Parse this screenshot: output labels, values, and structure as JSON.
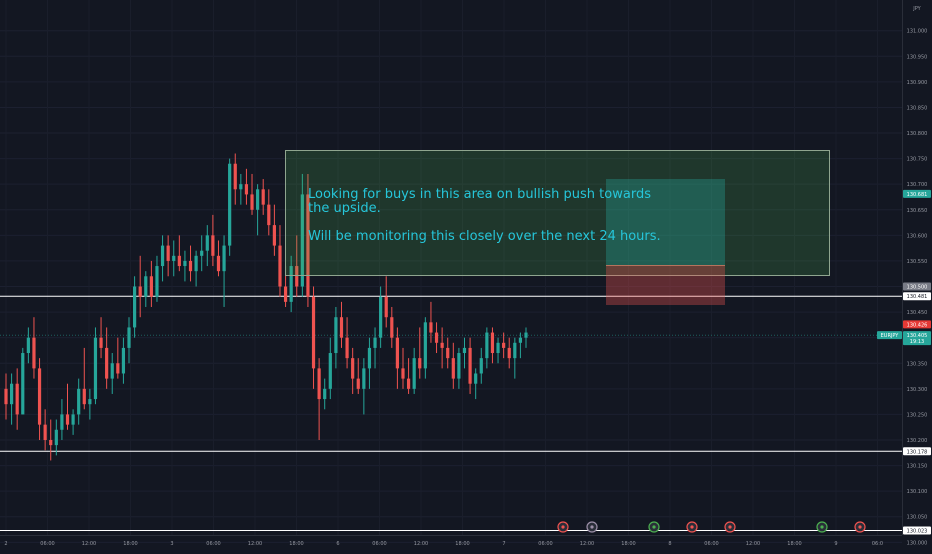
{
  "currency": "JPY",
  "annotation": {
    "line1": "Looking for buys in this area on bullish push towards the upside.",
    "line2": "Will be monitoring this closely over the next 24 hours."
  },
  "price_labels": {
    "current_price": "130.405",
    "current_price_color": "#26a69a",
    "symbol": "EURJPY",
    "countdown": "19:13",
    "stop_price": "130.426",
    "stop_color": "#e53935",
    "target_price": "130.681",
    "target_color": "#26a69a",
    "entry_price": "130.500",
    "entry_color": "#787b86",
    "level_1": "130.481",
    "level_2": "130.178",
    "level_3": "130.023"
  },
  "colors": {
    "up": "#26a69a",
    "down": "#ef5350",
    "background": "#131722",
    "annotation": "#26c6da"
  },
  "chart_data": {
    "type": "candlestick",
    "symbol": "EURJPY",
    "ylim": [
      129.985,
      131.06
    ],
    "y_ticks": [
      "131.000",
      "130.950",
      "130.900",
      "130.850",
      "130.800",
      "130.750",
      "130.700",
      "130.650",
      "130.600",
      "130.550",
      "130.500",
      "130.450",
      "130.400",
      "130.350",
      "130.300",
      "130.250",
      "130.200",
      "130.150",
      "130.100",
      "130.050",
      "130.000"
    ],
    "x_ticks": [
      "2",
      "06:00",
      "12:00",
      "18:00",
      "3",
      "06:00",
      "12:00",
      "18:00",
      "6",
      "06:00",
      "12:00",
      "18:00",
      "7",
      "06:00",
      "12:00",
      "18:00",
      "8",
      "06:00",
      "12:00",
      "18:00",
      "9",
      "06:0"
    ],
    "horizontal_levels": [
      130.481,
      130.178,
      130.023
    ],
    "annotation_zone": {
      "top": 130.74,
      "bottom": 130.48
    },
    "long_position": {
      "target": 130.681,
      "entry": 130.5,
      "stop": 130.426
    },
    "current_price": 130.405,
    "candles": [
      [
        130.3,
        130.33,
        130.24,
        130.27
      ],
      [
        130.27,
        130.33,
        130.23,
        130.31
      ],
      [
        130.31,
        130.34,
        130.22,
        130.25
      ],
      [
        130.25,
        130.38,
        130.25,
        130.37
      ],
      [
        130.37,
        130.42,
        130.35,
        130.4
      ],
      [
        130.4,
        130.44,
        130.32,
        130.34
      ],
      [
        130.34,
        130.36,
        130.2,
        130.23
      ],
      [
        130.23,
        130.26,
        130.18,
        130.2
      ],
      [
        130.2,
        130.24,
        130.16,
        130.19
      ],
      [
        130.19,
        130.24,
        130.17,
        130.22
      ],
      [
        130.22,
        130.28,
        130.2,
        130.25
      ],
      [
        130.25,
        130.31,
        130.22,
        130.23
      ],
      [
        130.23,
        130.26,
        130.21,
        130.25
      ],
      [
        130.25,
        130.32,
        130.23,
        130.3
      ],
      [
        130.3,
        130.38,
        130.26,
        130.27
      ],
      [
        130.27,
        130.3,
        130.24,
        130.28
      ],
      [
        130.28,
        130.42,
        130.27,
        130.4
      ],
      [
        130.4,
        130.44,
        130.36,
        130.38
      ],
      [
        130.38,
        130.42,
        130.3,
        130.32
      ],
      [
        130.32,
        130.37,
        130.29,
        130.35
      ],
      [
        130.35,
        130.4,
        130.32,
        130.33
      ],
      [
        130.33,
        130.4,
        130.31,
        130.38
      ],
      [
        130.38,
        130.44,
        130.35,
        130.42
      ],
      [
        130.42,
        130.52,
        130.4,
        130.5
      ],
      [
        130.5,
        130.56,
        130.44,
        130.48
      ],
      [
        130.48,
        130.53,
        130.46,
        130.52
      ],
      [
        130.52,
        130.55,
        130.46,
        130.48
      ],
      [
        130.48,
        130.56,
        130.47,
        130.54
      ],
      [
        130.54,
        130.6,
        130.51,
        130.58
      ],
      [
        130.58,
        130.6,
        130.52,
        130.55
      ],
      [
        130.55,
        130.59,
        130.52,
        130.56
      ],
      [
        130.56,
        130.6,
        130.53,
        130.54
      ],
      [
        130.54,
        130.57,
        130.51,
        130.55
      ],
      [
        130.55,
        130.58,
        130.51,
        130.53
      ],
      [
        130.53,
        130.57,
        130.5,
        130.56
      ],
      [
        130.56,
        130.6,
        130.53,
        130.57
      ],
      [
        130.57,
        130.62,
        130.54,
        130.6
      ],
      [
        130.6,
        130.64,
        130.54,
        130.56
      ],
      [
        130.56,
        130.59,
        130.52,
        130.53
      ],
      [
        130.53,
        130.6,
        130.46,
        130.58
      ],
      [
        130.58,
        130.75,
        130.56,
        130.74
      ],
      [
        130.74,
        130.76,
        130.66,
        130.69
      ],
      [
        130.69,
        130.72,
        130.66,
        130.7
      ],
      [
        130.7,
        130.73,
        130.66,
        130.68
      ],
      [
        130.68,
        130.72,
        130.64,
        130.65
      ],
      [
        130.65,
        130.7,
        130.6,
        130.69
      ],
      [
        130.69,
        130.71,
        130.64,
        130.66
      ],
      [
        130.66,
        130.69,
        130.6,
        130.62
      ],
      [
        130.62,
        130.66,
        130.56,
        130.58
      ],
      [
        130.58,
        130.62,
        130.48,
        130.5
      ],
      [
        130.5,
        130.54,
        130.46,
        130.47
      ],
      [
        130.47,
        130.56,
        130.45,
        130.54
      ],
      [
        130.54,
        130.6,
        130.48,
        130.5
      ],
      [
        130.5,
        130.72,
        130.48,
        130.68
      ],
      [
        130.68,
        130.72,
        130.46,
        130.48
      ],
      [
        130.48,
        130.5,
        130.3,
        130.34
      ],
      [
        130.34,
        130.36,
        130.2,
        130.28
      ],
      [
        130.28,
        130.32,
        130.26,
        130.3
      ],
      [
        130.3,
        130.4,
        130.28,
        130.37
      ],
      [
        130.37,
        130.46,
        130.34,
        130.44
      ],
      [
        130.44,
        130.47,
        130.38,
        130.4
      ],
      [
        130.4,
        130.44,
        130.34,
        130.36
      ],
      [
        130.36,
        130.38,
        130.29,
        130.32
      ],
      [
        130.32,
        130.36,
        130.29,
        130.3
      ],
      [
        130.3,
        130.36,
        130.25,
        130.34
      ],
      [
        130.34,
        130.4,
        130.3,
        130.38
      ],
      [
        130.38,
        130.42,
        130.34,
        130.4
      ],
      [
        130.4,
        130.5,
        130.38,
        130.48
      ],
      [
        130.48,
        130.52,
        130.42,
        130.44
      ],
      [
        130.44,
        130.46,
        130.38,
        130.4
      ],
      [
        130.4,
        130.42,
        130.3,
        130.34
      ],
      [
        130.34,
        130.38,
        130.3,
        130.32
      ],
      [
        130.32,
        130.36,
        130.29,
        130.3
      ],
      [
        130.3,
        130.38,
        130.29,
        130.36
      ],
      [
        130.36,
        130.42,
        130.32,
        130.34
      ],
      [
        130.34,
        130.44,
        130.32,
        130.43
      ],
      [
        130.43,
        130.47,
        130.39,
        130.41
      ],
      [
        130.41,
        130.43,
        130.37,
        130.39
      ],
      [
        130.39,
        130.42,
        130.34,
        130.38
      ],
      [
        130.38,
        130.4,
        130.34,
        130.36
      ],
      [
        130.36,
        130.39,
        130.3,
        130.32
      ],
      [
        130.32,
        130.38,
        130.3,
        130.37
      ],
      [
        130.37,
        130.4,
        130.34,
        130.38
      ],
      [
        130.38,
        130.4,
        130.29,
        130.31
      ],
      [
        130.31,
        130.34,
        130.28,
        130.33
      ],
      [
        130.33,
        130.38,
        130.31,
        130.36
      ],
      [
        130.36,
        130.42,
        130.34,
        130.41
      ],
      [
        130.41,
        130.42,
        130.35,
        130.37
      ],
      [
        130.37,
        130.4,
        130.35,
        130.39
      ],
      [
        130.39,
        130.41,
        130.36,
        130.38
      ],
      [
        130.38,
        130.4,
        130.34,
        130.36
      ],
      [
        130.36,
        130.4,
        130.32,
        130.39
      ],
      [
        130.39,
        130.41,
        130.36,
        130.4
      ],
      [
        130.4,
        130.42,
        130.38,
        130.41
      ]
    ]
  }
}
